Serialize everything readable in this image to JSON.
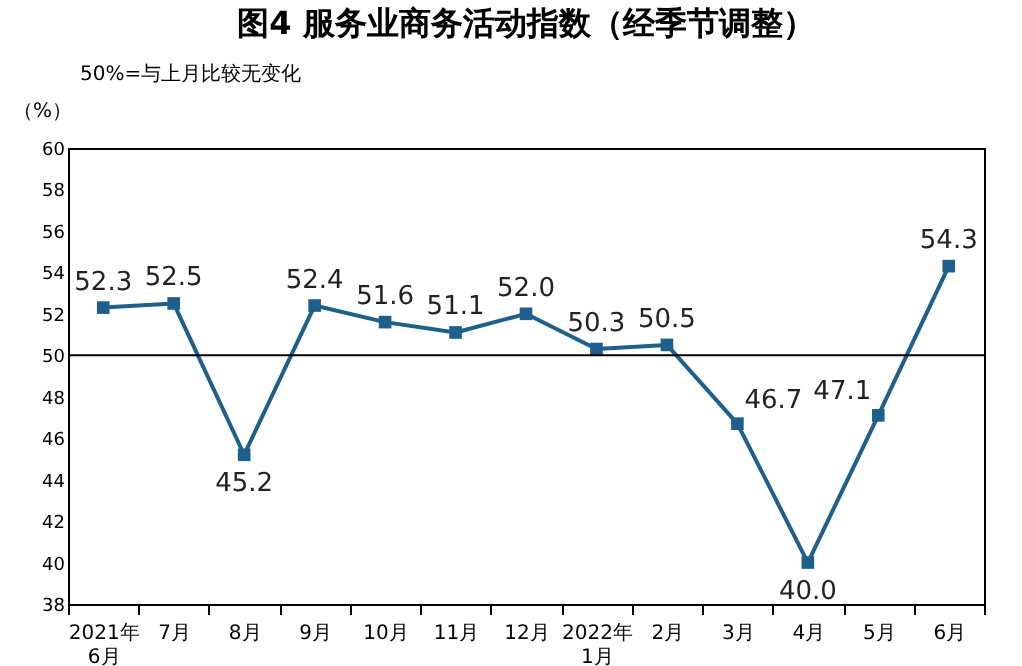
{
  "chart_data": {
    "type": "line",
    "title": "图4 服务业商务活动指数（经季节调整）",
    "ylabel": "（%）",
    "annotations": [
      "50%=与上月比较无变化"
    ],
    "categories": [
      "2021年\n6月",
      "7月",
      "8月",
      "9月",
      "10月",
      "11月",
      "12月",
      "2022年\n1月",
      "2月",
      "3月",
      "4月",
      "5月",
      "6月"
    ],
    "series": [
      {
        "color": "#1f5f8b",
        "values": [
          52.3,
          52.5,
          45.2,
          52.4,
          51.6,
          51.1,
          52.0,
          50.3,
          50.5,
          46.7,
          40.0,
          47.1,
          54.3
        ]
      }
    ],
    "ylim": [
      38,
      60
    ],
    "yticks": [
      38,
      40,
      42,
      44,
      46,
      48,
      50,
      52,
      54,
      56,
      58,
      60
    ],
    "ref_lines": [
      {
        "axis": "y",
        "value": 50,
        "color": "#000000"
      }
    ],
    "value_labels": [
      "52.3",
      "52.5",
      "45.2",
      "52.4",
      "51.6",
      "51.1",
      "52.0",
      "50.3",
      "50.5",
      "46.7",
      "40.0",
      "47.1",
      "54.3"
    ],
    "marker": "square",
    "line_style": "solid",
    "grid": false,
    "legend": false
  }
}
